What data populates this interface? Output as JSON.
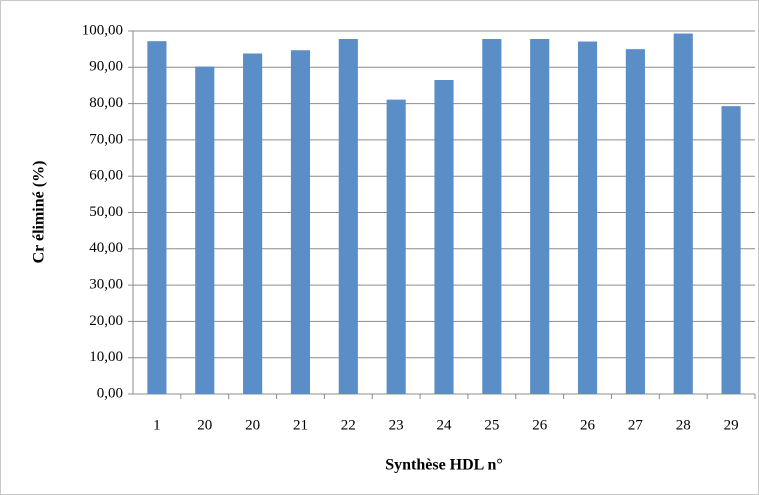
{
  "chart_data": {
    "type": "bar",
    "x_label": "Synthèse HDL n°",
    "y_label": "Cr éliminé (%)",
    "categories": [
      "1",
      "20",
      "20",
      "21",
      "22",
      "23",
      "24",
      "25",
      "26",
      "26",
      "27",
      "28",
      "29"
    ],
    "values": [
      97.2,
      90.2,
      93.8,
      94.7,
      97.8,
      81.1,
      86.5,
      97.8,
      97.8,
      97.1,
      95.0,
      99.3,
      79.3
    ],
    "color": "#5b8ec6",
    "ylim": [
      0,
      100
    ],
    "yticks": [
      {
        "value": 0,
        "label": "0,00"
      },
      {
        "value": 10,
        "label": "10,00"
      },
      {
        "value": 20,
        "label": "20,00"
      },
      {
        "value": 30,
        "label": "30,00"
      },
      {
        "value": 40,
        "label": "40,00"
      },
      {
        "value": 50,
        "label": "50,00"
      },
      {
        "value": 60,
        "label": "60,00"
      },
      {
        "value": 70,
        "label": "70,00"
      },
      {
        "value": 80,
        "label": "80,00"
      },
      {
        "value": 90,
        "label": "90,00"
      },
      {
        "value": 100,
        "label": "100,00"
      }
    ],
    "grid": true
  }
}
